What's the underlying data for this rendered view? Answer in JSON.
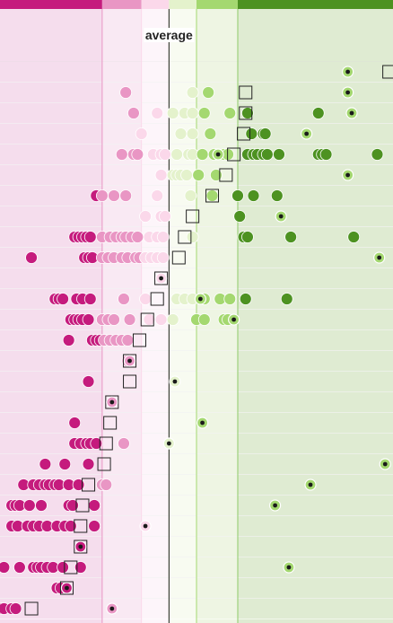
{
  "chart_data": {
    "type": "scatter",
    "x_domain": [
      0.0,
      1.0
    ],
    "average_x": 0.43,
    "annotations": {
      "average": "average"
    },
    "bands": [
      {
        "from": 0.0,
        "to": 0.26,
        "fill": "#f5dded",
        "bar": "#c51b7d",
        "line": "#c51b7d"
      },
      {
        "from": 0.26,
        "to": 0.36,
        "fill": "#f9e9f3",
        "bar": "#e996c4",
        "line": "#e996c4"
      },
      {
        "from": 0.36,
        "to": 0.43,
        "fill": "#fdf5fa",
        "bar": "#fbd8ea",
        "line": "#fbd8ea"
      },
      {
        "from": 0.43,
        "to": 0.5,
        "fill": "#f8fbf1",
        "bar": "#e4f2cc",
        "line": "#cfe5b0"
      },
      {
        "from": 0.5,
        "to": 0.605,
        "fill": "#eef5e3",
        "bar": "#a4d870",
        "line": "#a4d870"
      },
      {
        "from": 0.605,
        "to": 1.0,
        "fill": "#dfebd2",
        "bar": "#4d9221",
        "line": "#8fca6a"
      }
    ],
    "colors": {
      "c1": "#c51b7d",
      "c2": "#e996c4",
      "c3": "#fbd8ea",
      "c4": "#e4f2cc",
      "c5": "#a4d870",
      "c6": "#4d9221"
    },
    "rows": [
      {
        "dots": [],
        "square": 0.99,
        "target": 0.885
      },
      {
        "dots": [
          [
            0.32,
            "c2"
          ],
          [
            0.49,
            "c4"
          ],
          [
            0.53,
            "c5"
          ]
        ],
        "square": 0.625,
        "target": 0.885
      },
      {
        "dots": [
          [
            0.34,
            "c2"
          ],
          [
            0.4,
            "c3"
          ],
          [
            0.44,
            "c4"
          ],
          [
            0.47,
            "c4"
          ],
          [
            0.49,
            "c4"
          ],
          [
            0.52,
            "c5"
          ],
          [
            0.585,
            "c5"
          ],
          [
            0.63,
            "c6"
          ],
          [
            0.81,
            "c6"
          ]
        ],
        "square": 0.625,
        "target": 0.895
      },
      {
        "dots": [
          [
            0.36,
            "c3"
          ],
          [
            0.46,
            "c4"
          ],
          [
            0.49,
            "c4"
          ],
          [
            0.535,
            "c5"
          ],
          [
            0.64,
            "c6"
          ],
          [
            0.67,
            "c6"
          ],
          [
            0.675,
            "c6"
          ]
        ],
        "square": 0.62,
        "target": 0.78
      },
      {
        "dots": [
          [
            0.31,
            "c2"
          ],
          [
            0.34,
            "c2"
          ],
          [
            0.35,
            "c2"
          ],
          [
            0.39,
            "c3"
          ],
          [
            0.41,
            "c3"
          ],
          [
            0.42,
            "c3"
          ],
          [
            0.45,
            "c4"
          ],
          [
            0.48,
            "c4"
          ],
          [
            0.49,
            "c4"
          ],
          [
            0.515,
            "c5"
          ],
          [
            0.545,
            "c5"
          ],
          [
            0.57,
            "c5"
          ],
          [
            0.58,
            "c5"
          ],
          [
            0.63,
            "c6"
          ],
          [
            0.645,
            "c6"
          ],
          [
            0.655,
            "c6"
          ],
          [
            0.67,
            "c6"
          ],
          [
            0.68,
            "c6"
          ],
          [
            0.71,
            "c6"
          ],
          [
            0.81,
            "c6"
          ],
          [
            0.82,
            "c6"
          ],
          [
            0.83,
            "c6"
          ],
          [
            0.96,
            "c6"
          ]
        ],
        "square": 0.595,
        "target": 0.555
      },
      {
        "dots": [
          [
            0.41,
            "c3"
          ],
          [
            0.44,
            "c4"
          ],
          [
            0.45,
            "c4"
          ],
          [
            0.46,
            "c4"
          ],
          [
            0.475,
            "c4"
          ],
          [
            0.505,
            "c5"
          ],
          [
            0.55,
            "c5"
          ]
        ],
        "square": 0.575,
        "target": 0.885
      },
      {
        "dots": [
          [
            0.245,
            "c1"
          ],
          [
            0.26,
            "c2"
          ],
          [
            0.29,
            "c2"
          ],
          [
            0.32,
            "c2"
          ],
          [
            0.4,
            "c3"
          ],
          [
            0.485,
            "c4"
          ],
          [
            0.54,
            "c5"
          ],
          [
            0.605,
            "c6"
          ],
          [
            0.645,
            "c6"
          ],
          [
            0.705,
            "c6"
          ]
        ],
        "square": 0.54,
        "target": null
      },
      {
        "dots": [
          [
            0.37,
            "c3"
          ],
          [
            0.41,
            "c3"
          ],
          [
            0.42,
            "c3"
          ],
          [
            0.61,
            "c6"
          ]
        ],
        "square": 0.49,
        "target": 0.715
      },
      {
        "dots": [
          [
            0.19,
            "c1"
          ],
          [
            0.2,
            "c1"
          ],
          [
            0.21,
            "c1"
          ],
          [
            0.22,
            "c1"
          ],
          [
            0.23,
            "c1"
          ],
          [
            0.26,
            "c2"
          ],
          [
            0.28,
            "c2"
          ],
          [
            0.295,
            "c2"
          ],
          [
            0.31,
            "c2"
          ],
          [
            0.32,
            "c2"
          ],
          [
            0.335,
            "c2"
          ],
          [
            0.35,
            "c2"
          ],
          [
            0.38,
            "c3"
          ],
          [
            0.4,
            "c3"
          ],
          [
            0.415,
            "c3"
          ],
          [
            0.49,
            "c4"
          ],
          [
            0.62,
            "c6"
          ],
          [
            0.63,
            "c6"
          ],
          [
            0.74,
            "c6"
          ],
          [
            0.9,
            "c6"
          ]
        ],
        "square": 0.47,
        "target": null
      },
      {
        "dots": [
          [
            0.08,
            "c1"
          ],
          [
            0.215,
            "c1"
          ],
          [
            0.225,
            "c1"
          ],
          [
            0.235,
            "c1"
          ],
          [
            0.26,
            "c2"
          ],
          [
            0.275,
            "c2"
          ],
          [
            0.29,
            "c2"
          ],
          [
            0.31,
            "c2"
          ],
          [
            0.325,
            "c2"
          ],
          [
            0.345,
            "c2"
          ],
          [
            0.355,
            "c2"
          ],
          [
            0.37,
            "c3"
          ],
          [
            0.385,
            "c3"
          ],
          [
            0.4,
            "c3"
          ],
          [
            0.415,
            "c3"
          ]
        ],
        "square": 0.455,
        "target": 0.965
      },
      {
        "dots": [],
        "square": 0.41,
        "target": 0.41
      },
      {
        "dots": [
          [
            0.14,
            "c1"
          ],
          [
            0.15,
            "c1"
          ],
          [
            0.16,
            "c1"
          ],
          [
            0.195,
            "c1"
          ],
          [
            0.21,
            "c1"
          ],
          [
            0.23,
            "c1"
          ],
          [
            0.315,
            "c2"
          ],
          [
            0.37,
            "c3"
          ],
          [
            0.45,
            "c4"
          ],
          [
            0.47,
            "c4"
          ],
          [
            0.49,
            "c4"
          ],
          [
            0.52,
            "c5"
          ],
          [
            0.56,
            "c5"
          ],
          [
            0.585,
            "c5"
          ],
          [
            0.625,
            "c6"
          ],
          [
            0.73,
            "c6"
          ]
        ],
        "square": 0.4,
        "target": 0.51
      },
      {
        "dots": [
          [
            0.18,
            "c1"
          ],
          [
            0.19,
            "c1"
          ],
          [
            0.2,
            "c1"
          ],
          [
            0.21,
            "c1"
          ],
          [
            0.225,
            "c1"
          ],
          [
            0.26,
            "c2"
          ],
          [
            0.275,
            "c2"
          ],
          [
            0.29,
            "c2"
          ],
          [
            0.33,
            "c2"
          ],
          [
            0.38,
            "c3"
          ],
          [
            0.41,
            "c3"
          ],
          [
            0.44,
            "c4"
          ],
          [
            0.5,
            "c5"
          ],
          [
            0.52,
            "c5"
          ],
          [
            0.57,
            "c5"
          ],
          [
            0.58,
            "c5"
          ]
        ],
        "square": 0.375,
        "target": 0.595
      },
      {
        "dots": [
          [
            0.175,
            "c1"
          ],
          [
            0.235,
            "c1"
          ],
          [
            0.245,
            "c1"
          ],
          [
            0.255,
            "c1"
          ],
          [
            0.265,
            "c2"
          ],
          [
            0.28,
            "c2"
          ],
          [
            0.295,
            "c2"
          ],
          [
            0.31,
            "c2"
          ],
          [
            0.325,
            "c2"
          ]
        ],
        "square": 0.355,
        "target": null
      },
      {
        "dots": [
          [
            0.325,
            "c2"
          ]
        ],
        "square": 0.33,
        "target": 0.33
      },
      {
        "dots": [
          [
            0.225,
            "c1"
          ]
        ],
        "square": 0.33,
        "target": 0.445
      },
      {
        "dots": [],
        "square": 0.285,
        "target": 0.285
      },
      {
        "dots": [
          [
            0.19,
            "c1"
          ]
        ],
        "square": 0.28,
        "target": 0.515
      },
      {
        "dots": [
          [
            0.19,
            "c1"
          ],
          [
            0.205,
            "c1"
          ],
          [
            0.22,
            "c1"
          ],
          [
            0.23,
            "c1"
          ],
          [
            0.245,
            "c1"
          ],
          [
            0.315,
            "c2"
          ]
        ],
        "square": 0.27,
        "target": 0.43
      },
      {
        "dots": [
          [
            0.115,
            "c1"
          ],
          [
            0.165,
            "c1"
          ],
          [
            0.225,
            "c1"
          ]
        ],
        "square": 0.265,
        "target": 0.98
      },
      {
        "dots": [
          [
            0.06,
            "c1"
          ],
          [
            0.085,
            "c1"
          ],
          [
            0.1,
            "c1"
          ],
          [
            0.115,
            "c1"
          ],
          [
            0.125,
            "c1"
          ],
          [
            0.14,
            "c1"
          ],
          [
            0.15,
            "c1"
          ],
          [
            0.175,
            "c1"
          ],
          [
            0.2,
            "c1"
          ],
          [
            0.26,
            "c2"
          ],
          [
            0.27,
            "c2"
          ]
        ],
        "square": 0.225,
        "target": 0.79
      },
      {
        "dots": [
          [
            0.03,
            "c1"
          ],
          [
            0.04,
            "c1"
          ],
          [
            0.05,
            "c1"
          ],
          [
            0.075,
            "c1"
          ],
          [
            0.105,
            "c1"
          ],
          [
            0.175,
            "c1"
          ],
          [
            0.185,
            "c1"
          ],
          [
            0.24,
            "c1"
          ]
        ],
        "square": 0.21,
        "target": 0.7
      },
      {
        "dots": [
          [
            0.03,
            "c1"
          ],
          [
            0.045,
            "c1"
          ],
          [
            0.07,
            "c1"
          ],
          [
            0.085,
            "c1"
          ],
          [
            0.1,
            "c1"
          ],
          [
            0.12,
            "c1"
          ],
          [
            0.145,
            "c1"
          ],
          [
            0.165,
            "c1"
          ],
          [
            0.18,
            "c1"
          ],
          [
            0.24,
            "c1"
          ]
        ],
        "square": 0.205,
        "target": 0.37
      },
      {
        "dots": [],
        "square": 0.205,
        "target": 0.205
      },
      {
        "dots": [
          [
            0.01,
            "c1"
          ],
          [
            0.05,
            "c1"
          ],
          [
            0.085,
            "c1"
          ],
          [
            0.095,
            "c1"
          ],
          [
            0.105,
            "c1"
          ],
          [
            0.12,
            "c1"
          ],
          [
            0.135,
            "c1"
          ],
          [
            0.16,
            "c1"
          ],
          [
            0.205,
            "c1"
          ]
        ],
        "square": 0.18,
        "target": 0.735
      },
      {
        "dots": [
          [
            0.145,
            "c1"
          ],
          [
            0.155,
            "c1"
          ]
        ],
        "square": 0.17,
        "target": 0.17
      },
      {
        "dots": [
          [
            0.0,
            "c1"
          ],
          [
            0.01,
            "c1"
          ],
          [
            0.03,
            "c1"
          ],
          [
            0.04,
            "c1"
          ]
        ],
        "square": 0.08,
        "target": 0.285
      }
    ]
  }
}
